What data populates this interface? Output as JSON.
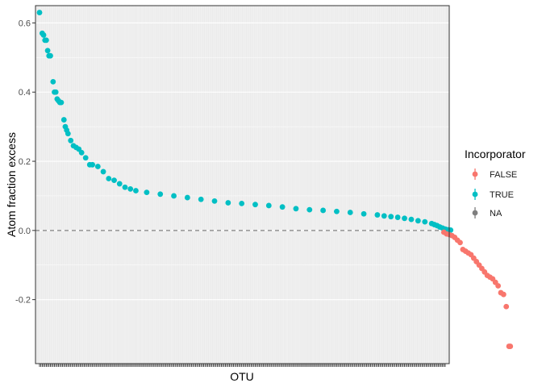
{
  "chart_data": {
    "type": "scatter",
    "xlabel": "OTU",
    "ylabel": "Atom fraction excess",
    "ylim": [
      -0.385,
      0.65
    ],
    "yticks": [
      -0.2,
      0.0,
      0.2,
      0.4,
      0.6
    ],
    "ytick_labels": [
      "-0.2",
      "0.0",
      "0.2",
      "0.4",
      "0.6"
    ],
    "n_otus": 300,
    "reference_line": {
      "y": 0.0,
      "style": "dashed"
    },
    "legend": {
      "title": "Incorporator",
      "position": "right",
      "entries": [
        {
          "label": "FALSE",
          "color": "#F8766D"
        },
        {
          "label": "TRUE",
          "color": "#00BFC4"
        },
        {
          "label": "NA",
          "color": "#7F7F7F"
        }
      ]
    },
    "series": [
      {
        "name": "TRUE",
        "color": "#00BFC4",
        "x": [
          1,
          3,
          4,
          5,
          6,
          7,
          8,
          9,
          11,
          12,
          13,
          14,
          15,
          16,
          17,
          19,
          20,
          21,
          22,
          24,
          26,
          28,
          30,
          32,
          35,
          38,
          40,
          44,
          48,
          52,
          56,
          60,
          64,
          68,
          72,
          80,
          90,
          100,
          110,
          120,
          130,
          140,
          150,
          160,
          170,
          180,
          190,
          200,
          210,
          220,
          230,
          240,
          250,
          255,
          260,
          265,
          270,
          275,
          280,
          285,
          290,
          292,
          294,
          296,
          298,
          300,
          302,
          304
        ],
        "y": [
          0.63,
          0.57,
          0.565,
          0.55,
          0.55,
          0.52,
          0.505,
          0.505,
          0.43,
          0.4,
          0.4,
          0.38,
          0.375,
          0.37,
          0.37,
          0.32,
          0.3,
          0.29,
          0.28,
          0.26,
          0.245,
          0.24,
          0.235,
          0.225,
          0.21,
          0.19,
          0.19,
          0.185,
          0.17,
          0.15,
          0.145,
          0.135,
          0.125,
          0.12,
          0.115,
          0.11,
          0.105,
          0.1,
          0.095,
          0.09,
          0.085,
          0.08,
          0.078,
          0.075,
          0.072,
          0.068,
          0.063,
          0.06,
          0.058,
          0.055,
          0.052,
          0.048,
          0.045,
          0.042,
          0.04,
          0.038,
          0.035,
          0.032,
          0.028,
          0.025,
          0.02,
          0.017,
          0.014,
          0.01,
          0.007,
          0.004,
          0.002,
          0.001
        ]
      },
      {
        "name": "FALSE",
        "color": "#F8766D",
        "x": [
          299,
          301,
          303,
          305,
          307,
          309,
          311,
          313,
          315,
          317,
          319,
          321,
          323,
          325,
          327,
          329,
          331,
          333,
          335,
          337,
          339,
          341,
          343,
          345,
          347,
          348
        ],
        "y": [
          -0.005,
          -0.01,
          -0.012,
          -0.015,
          -0.02,
          -0.028,
          -0.035,
          -0.055,
          -0.06,
          -0.065,
          -0.07,
          -0.08,
          -0.09,
          -0.1,
          -0.11,
          -0.12,
          -0.13,
          -0.135,
          -0.14,
          -0.15,
          -0.16,
          -0.18,
          -0.185,
          -0.22,
          -0.335,
          -0.335
        ]
      }
    ]
  }
}
